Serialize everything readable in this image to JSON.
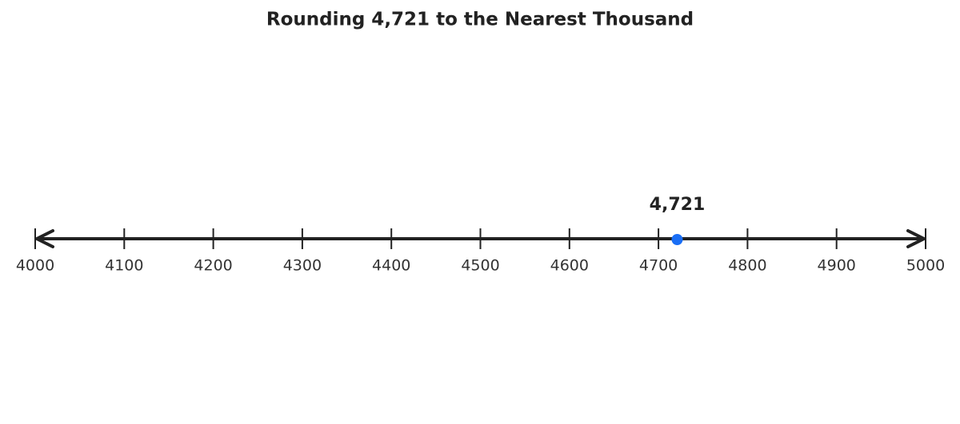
{
  "chart_data": {
    "type": "number_line",
    "title": "Rounding 4,721 to the Nearest Thousand",
    "xlim": [
      4000,
      5000
    ],
    "xticks": [
      4000,
      4100,
      4200,
      4300,
      4400,
      4500,
      4600,
      4700,
      4800,
      4900,
      5000
    ],
    "values": [
      4721
    ],
    "value_labels": [
      "4,721"
    ],
    "color": "#1a6ef5"
  }
}
